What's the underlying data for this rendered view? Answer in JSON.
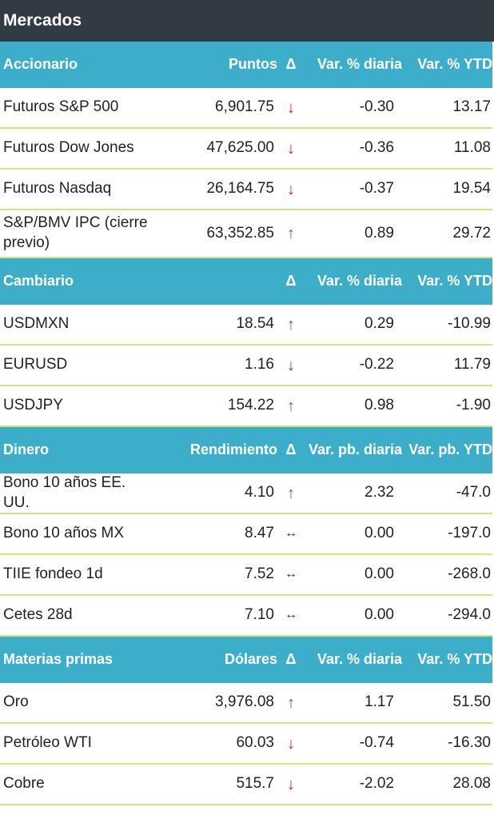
{
  "title": "Mercados",
  "sections": [
    {
      "header": [
        "Accionario",
        "Puntos",
        "Δ",
        "Var. % diaria",
        "Var. % YTD"
      ],
      "rows": [
        {
          "name": "Futuros S&P 500",
          "value": "6,901.75",
          "dir": "down",
          "daily": "-0.30",
          "ytd": "13.17"
        },
        {
          "name": "Futuros Dow Jones",
          "value": "47,625.00",
          "dir": "down",
          "daily": "-0.36",
          "ytd": "11.08"
        },
        {
          "name": "Futuros Nasdaq",
          "value": "26,164.75",
          "dir": "down",
          "daily": "-0.37",
          "ytd": "19.54"
        },
        {
          "name": "S&P/BMV IPC (cierre previo)",
          "value": "63,352.85",
          "dir": "up",
          "daily": "0.89",
          "ytd": "29.72"
        }
      ]
    },
    {
      "header": [
        "Cambiario",
        "",
        "Δ",
        "Var. % diaria",
        "Var. % YTD"
      ],
      "rows": [
        {
          "name": "USDMXN",
          "value": "18.54",
          "dir": "up",
          "daily": "0.29",
          "ytd": "-10.99"
        },
        {
          "name": "EURUSD",
          "value": "1.16",
          "dir": "down",
          "daily": "-0.22",
          "ytd": "11.79"
        },
        {
          "name": "USDJPY",
          "value": "154.22",
          "dir": "up",
          "daily": "0.98",
          "ytd": "-1.90"
        }
      ]
    },
    {
      "header": [
        "Dinero",
        "Rendimiento",
        "Δ",
        "Var. pb. diaria",
        "Var. pb. YTD"
      ],
      "rows": [
        {
          "name": "Bono 10 años EE. UU.",
          "value": "4.10",
          "dir": "up",
          "daily": "2.32",
          "ytd": "-47.0"
        },
        {
          "name": "Bono 10 años MX",
          "value": "8.47",
          "dir": "flat",
          "daily": "0.00",
          "ytd": "-197.0"
        },
        {
          "name": "TIIE fondeo 1d",
          "value": "7.52",
          "dir": "flat",
          "daily": "0.00",
          "ytd": "-268.0"
        },
        {
          "name": "Cetes 28d",
          "value": "7.10",
          "dir": "flat",
          "daily": "0.00",
          "ytd": "-294.0"
        }
      ]
    },
    {
      "header": [
        "Materias primas",
        "Dólares",
        "Δ",
        "Var. % diaria",
        "Var. % YTD"
      ],
      "rows": [
        {
          "name": "Oro",
          "value": "3,976.08",
          "dir": "up",
          "daily": "1.17",
          "ytd": "51.50"
        },
        {
          "name": "Petróleo WTI",
          "value": "60.03",
          "dir": "down",
          "daily": "-0.74",
          "ytd": "-16.30"
        },
        {
          "name": "Cobre",
          "value": "515.7",
          "dir": "down",
          "daily": "-2.02",
          "ytd": "28.08"
        }
      ]
    }
  ],
  "arrows": {
    "up": "↑",
    "down": "↓",
    "flat": "↔"
  },
  "colors": {
    "header_bg": "#3caec9",
    "title_bg": "#323a44",
    "up": "#2b8a2b",
    "down": "#cc2222",
    "divider": "#d6e27a"
  }
}
